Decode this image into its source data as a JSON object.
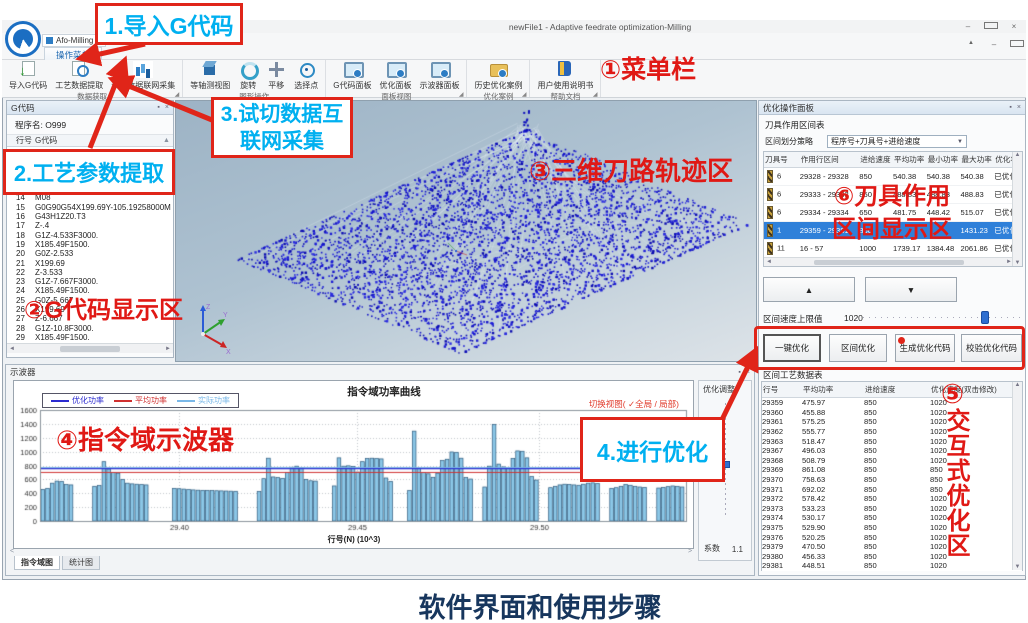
{
  "window": {
    "title": "newFile1 - Adaptive feedrate optimization-Milling",
    "app_button": "Afo-Milling",
    "tab": "操作菜单",
    "controls": [
      "最小化",
      "还原",
      "关闭"
    ]
  },
  "ribbon": {
    "groups": [
      {
        "label": "数据获取",
        "launcher": true,
        "buttons": [
          {
            "label": "导入G代码",
            "icon": "import-gcode-icon",
            "cls": "ic-import"
          },
          {
            "label": "工艺数据提取",
            "icon": "process-data-extract-icon",
            "cls": "ic-extract"
          },
          {
            "label": "试切数据联网采集",
            "icon": "trial-cut-data-icon",
            "cls": "ic-trial"
          }
        ]
      },
      {
        "label": "图形操作",
        "launcher": false,
        "buttons": [
          {
            "label": "等轴测视图",
            "icon": "isometric-view-icon",
            "cls": "ic-iso"
          },
          {
            "label": "旋转",
            "icon": "rotate-icon",
            "cls": "ic-rotate"
          },
          {
            "label": "平移",
            "icon": "pan-icon",
            "cls": "ic-pan"
          },
          {
            "label": "选择点",
            "icon": "select-point-icon",
            "cls": "ic-point"
          }
        ]
      },
      {
        "label": "面板视图",
        "launcher": true,
        "buttons": [
          {
            "label": "G代码面板",
            "icon": "gcode-panel-icon",
            "cls": "ic-screen"
          },
          {
            "label": "优化面板",
            "icon": "optimize-panel-icon",
            "cls": "ic-screen"
          },
          {
            "label": "示波器面板",
            "icon": "oscilloscope-panel-icon",
            "cls": "ic-screen"
          }
        ]
      },
      {
        "label": "优化案例",
        "launcher": true,
        "buttons": [
          {
            "label": "历史优化案例",
            "icon": "history-case-icon",
            "cls": "ic-folder"
          }
        ]
      },
      {
        "label": "帮助文档",
        "launcher": true,
        "buttons": [
          {
            "label": "用户使用说明书",
            "icon": "user-manual-icon",
            "cls": "ic-book"
          }
        ]
      }
    ]
  },
  "gcode": {
    "title": "G代码",
    "program_label": "程序名:",
    "program_name": "O999",
    "col_line": "行号",
    "col_code": "G代码",
    "rows": [
      [
        "14",
        "M08"
      ],
      [
        "15",
        "G0G90G54X199.69Y-105.19258000M"
      ],
      [
        "16",
        "G43H1Z20.T3"
      ],
      [
        "17",
        "Z-.4"
      ],
      [
        "18",
        "G1Z-4.533F3000."
      ],
      [
        "19",
        "X185.49F1500."
      ],
      [
        "20",
        "G0Z-2.533"
      ],
      [
        "21",
        "X199.69"
      ],
      [
        "22",
        "Z-3.533"
      ],
      [
        "23",
        "G1Z-7.667F3000."
      ],
      [
        "24",
        "X185.49F1500."
      ],
      [
        "25",
        "G0Z-5.667"
      ],
      [
        "26",
        "X199.69"
      ],
      [
        "27",
        "Z-6.667"
      ],
      [
        "28",
        "G1Z-10.8F3000."
      ],
      [
        "29",
        "X185.49F1500."
      ]
    ]
  },
  "viewport": {
    "axis_x": "X",
    "axis_y": "Y",
    "axis_z": "Z"
  },
  "right": {
    "title": "优化操作面板",
    "section_title": "刀具作用区间表",
    "strategy_label": "区间划分策略",
    "strategy_value": "程序号+刀具号+进给速度",
    "tool_table": {
      "headers": [
        "刀具号",
        "作用行区间",
        "进给速度",
        "平均功率",
        "最小功率",
        "最大功率",
        "优化状态"
      ],
      "rows": [
        {
          "tool": "6",
          "range": "29328 - 29328",
          "feed": "850",
          "avg": "540.38",
          "min": "540.38",
          "max": "540.38",
          "status": "已优化",
          "selected": false
        },
        {
          "tool": "6",
          "range": "29333 - 29333",
          "feed": "850",
          "avg": "488.83",
          "min": "488.83",
          "max": "488.83",
          "status": "已优化",
          "selected": false
        },
        {
          "tool": "6",
          "range": "29334 - 29334",
          "feed": "650",
          "avg": "481.75",
          "min": "448.42",
          "max": "515.07",
          "status": "已优化",
          "selected": false
        },
        {
          "tool": "1",
          "range": "29359 - 29381",
          "feed": "850",
          "avg": "",
          "min": "",
          "max": "1431.23",
          "status": "已优化",
          "selected": true
        },
        {
          "tool": "11",
          "range": "16 - 57",
          "feed": "1000",
          "avg": "1739.17",
          "min": "1384.48",
          "max": "2061.86",
          "status": "已优化",
          "selected": false
        }
      ]
    },
    "up_button": "▲",
    "down_button": "▼",
    "speed_label": "区间速度上限值",
    "speed_value": "1020",
    "action_buttons": [
      "一键优化",
      "区间优化",
      "生成优化代码",
      "校验优化代码"
    ],
    "table2_label": "区间工艺数据表",
    "data_table": {
      "headers": [
        "行号",
        "平均功率",
        "进给速度",
        "优化速度(双击修改)"
      ],
      "rows": [
        [
          "29359",
          "475.97",
          "850",
          "1020"
        ],
        [
          "29360",
          "455.88",
          "850",
          "1020"
        ],
        [
          "29361",
          "575.25",
          "850",
          "1020"
        ],
        [
          "29362",
          "555.77",
          "850",
          "1020"
        ],
        [
          "29363",
          "518.47",
          "850",
          "1020"
        ],
        [
          "29367",
          "496.03",
          "850",
          "1020"
        ],
        [
          "29368",
          "508.79",
          "850",
          "1020"
        ],
        [
          "29369",
          "861.08",
          "850",
          "850"
        ],
        [
          "29370",
          "758.63",
          "850",
          "850"
        ],
        [
          "29371",
          "692.02",
          "850",
          "850"
        ],
        [
          "29372",
          "578.42",
          "850",
          "1020"
        ],
        [
          "29373",
          "533.23",
          "850",
          "1020"
        ],
        [
          "29374",
          "530.17",
          "850",
          "1020"
        ],
        [
          "29375",
          "529.90",
          "850",
          "1020"
        ],
        [
          "29376",
          "520.25",
          "850",
          "1020"
        ],
        [
          "29379",
          "470.50",
          "850",
          "1020"
        ],
        [
          "29380",
          "456.33",
          "850",
          "1020"
        ],
        [
          "29381",
          "448.51",
          "850",
          "1020"
        ]
      ]
    }
  },
  "osc": {
    "title": "示波器",
    "toggle": "切换视图( ✓全局 / 局部)",
    "tabs": [
      "指令域图",
      "统计图"
    ],
    "adjust": {
      "title": "优化调整",
      "coef_label": "系数",
      "coef_value": "1.1"
    }
  },
  "chart_data": {
    "type": "bar",
    "title": "指令域功率曲线",
    "xlabel": "行号(N) (10^3)",
    "ylabel": "",
    "ylim": [
      0,
      1600
    ],
    "ystep": 200,
    "x_tick_labels": [
      "29.40",
      "29.45",
      "29.50"
    ],
    "legend": [
      {
        "label": "优化功率",
        "color": "#2b2bd0"
      },
      {
        "label": "平均功率",
        "color": "#d03030"
      },
      {
        "label": "实际功率",
        "color": "#7ab8e8"
      }
    ],
    "series": [
      {
        "name": "实际功率",
        "type": "bar",
        "values": [
          455,
          470,
          545,
          575,
          570,
          525,
          520,
          0,
          0,
          0,
          0,
          500,
          510,
          855,
          750,
          700,
          690,
          600,
          545,
          535,
          530,
          525,
          520,
          0,
          0,
          0,
          0,
          0,
          470,
          465,
          460,
          452,
          448,
          444,
          442,
          440,
          438,
          436,
          434,
          432,
          430,
          428,
          0,
          0,
          0,
          0,
          425,
          610,
          905,
          635,
          625,
          615,
          700,
          775,
          790,
          770,
          600,
          580,
          575,
          0,
          0,
          0,
          505,
          910,
          790,
          795,
          785,
          705,
          855,
          900,
          905,
          900,
          895,
          620,
          570,
          0,
          0,
          0,
          440,
          1295,
          760,
          700,
          680,
          630,
          690,
          870,
          890,
          995,
          990,
          905,
          625,
          605,
          0,
          0,
          490,
          790,
          1390,
          820,
          780,
          755,
          900,
          1010,
          1005,
          910,
          640,
          590,
          0,
          0,
          480,
          500,
          520,
          530,
          525,
          520,
          515,
          530,
          545,
          550,
          540,
          0,
          0,
          470,
          480,
          500,
          525,
          515,
          500,
          490,
          485,
          0,
          0,
          475,
          485,
          495,
          505,
          500,
          490
        ]
      },
      {
        "name": "优化功率",
        "type": "hline",
        "value": 755
      },
      {
        "name": "平均功率",
        "type": "hline",
        "value": 700
      },
      {
        "name": "实际功率线",
        "type": "hline",
        "value": 770
      }
    ]
  },
  "annotations": {
    "step1": "1.导入G代码",
    "step2": "2.工艺参数提取",
    "step3": "3.试切数据互联网采集",
    "step4": "4.进行优化",
    "label1": "①菜单栏",
    "label2": "②G代码显示区",
    "label3": "③三维刀路轨迹区",
    "label4": "④指令域示波器",
    "label5_num": "⑤",
    "label5_text": "交互式优化区",
    "label6_line1": "⑥刀具作用",
    "label6_line2": "区间显示区",
    "caption": "软件界面和使用步骤"
  }
}
